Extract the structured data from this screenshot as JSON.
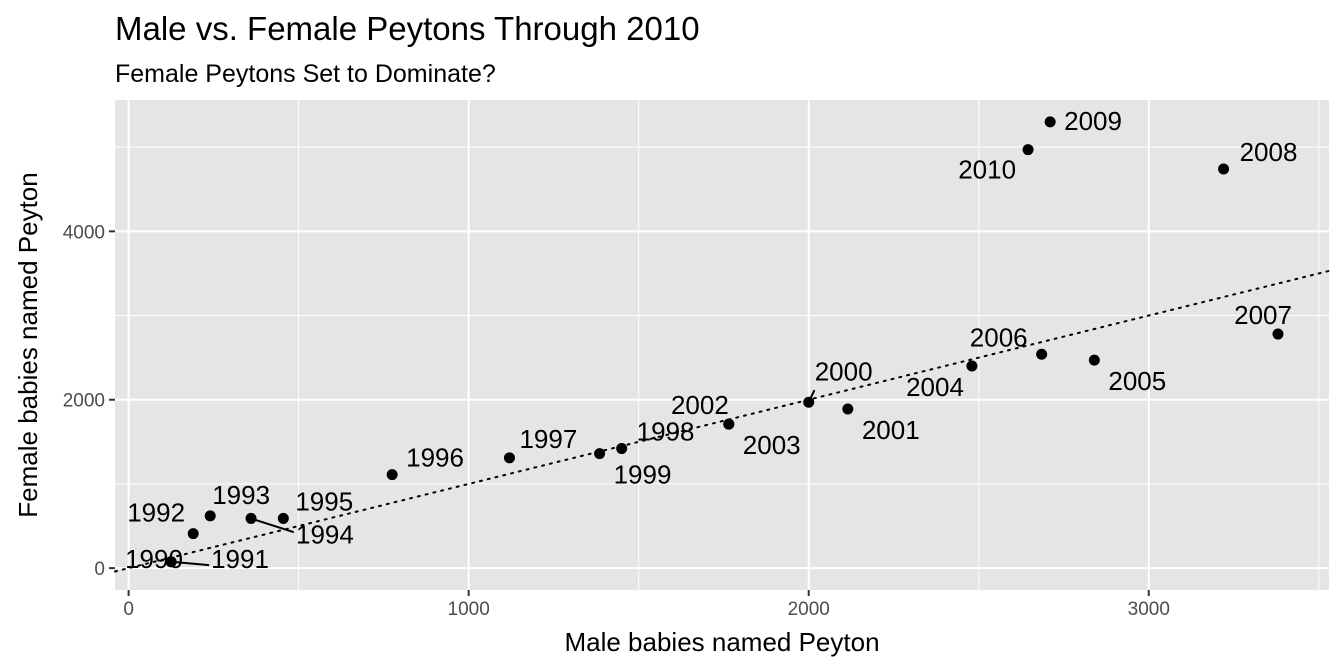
{
  "chart_data": {
    "type": "scatter",
    "title": "Male vs. Female Peytons Through 2010",
    "subtitle": "Female Peytons Set to Dominate?",
    "xlabel": "Male babies named Peyton",
    "ylabel": "Female babies named Peyton",
    "xlim": [
      -40,
      3530
    ],
    "ylim": [
      -260,
      5560
    ],
    "x_ticks": [
      0,
      1000,
      2000,
      3000
    ],
    "x_tick_labels": [
      "0",
      "1000",
      "2000",
      "3000"
    ],
    "y_ticks": [
      0,
      2000,
      4000
    ],
    "y_tick_labels": [
      "0",
      "2000",
      "4000"
    ],
    "grid": true,
    "background": "#e5e5e5",
    "grid_color": "#ffffff",
    "point_color": "#000000",
    "trend_line": {
      "style": "dotted",
      "slope": 1.0,
      "intercept": 0
    },
    "points": [
      {
        "label": "1990",
        "x": 125,
        "y": 75
      },
      {
        "label": "1991",
        "x": 125,
        "y": 75
      },
      {
        "label": "1992",
        "x": 190,
        "y": 410
      },
      {
        "label": "1993",
        "x": 240,
        "y": 620
      },
      {
        "label": "1994",
        "x": 360,
        "y": 590
      },
      {
        "label": "1995",
        "x": 455,
        "y": 590
      },
      {
        "label": "1996",
        "x": 775,
        "y": 1110
      },
      {
        "label": "1997",
        "x": 1120,
        "y": 1310
      },
      {
        "label": "1998",
        "x": 1450,
        "y": 1420
      },
      {
        "label": "1999",
        "x": 1385,
        "y": 1360
      },
      {
        "label": "2000",
        "x": 2000,
        "y": 1970
      },
      {
        "label": "2001",
        "x": 2115,
        "y": 1890
      },
      {
        "label": "2002",
        "x": 1765,
        "y": 1710
      },
      {
        "label": "2003",
        "x": 1765,
        "y": 1710
      },
      {
        "label": "2004",
        "x": 2480,
        "y": 2400
      },
      {
        "label": "2005",
        "x": 2840,
        "y": 2470
      },
      {
        "label": "2006",
        "x": 2685,
        "y": 2540
      },
      {
        "label": "2007",
        "x": 3380,
        "y": 2780
      },
      {
        "label": "2008",
        "x": 3220,
        "y": 4740
      },
      {
        "label": "2009",
        "x": 2710,
        "y": 5300
      },
      {
        "label": "2010",
        "x": 2645,
        "y": 4970
      }
    ]
  }
}
